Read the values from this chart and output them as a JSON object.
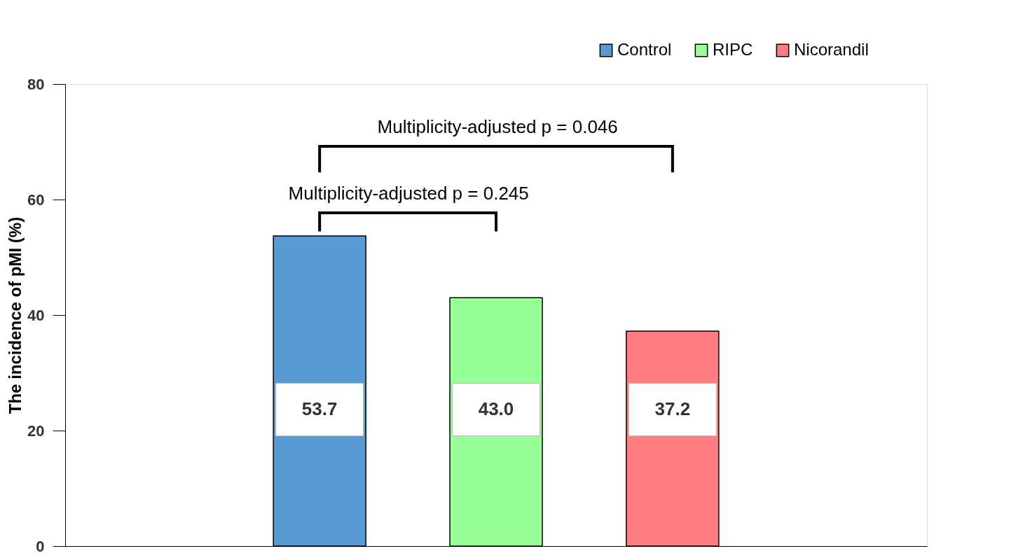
{
  "chart_data": {
    "type": "bar",
    "ylabel": "The incidence of pMI (%)",
    "categories": [
      null
    ],
    "series": [
      {
        "name": "Control",
        "color": "#5b9bd5",
        "values": [
          53.7
        ]
      },
      {
        "name": "RIPC",
        "color": "#99ff99",
        "values": [
          43.0
        ]
      },
      {
        "name": "Nicorandil",
        "color": "#ff7c80",
        "values": [
          37.2
        ]
      }
    ],
    "value_labels": [
      "53.7",
      "43.0",
      "37.2"
    ],
    "ylim": [
      0,
      80
    ],
    "yticks": [
      0,
      20,
      40,
      60,
      80
    ],
    "grid": false,
    "legend": "top right",
    "annotations": [
      "Multiplicity-adjusted  p = 0.245",
      "Multiplicity-adjusted  p = 0.046"
    ]
  }
}
